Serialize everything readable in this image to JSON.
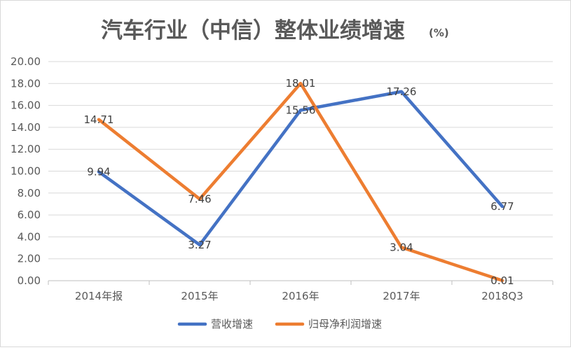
{
  "chart_data": {
    "type": "line",
    "title": "汽车行业（中信）整体业绩增速",
    "title_unit": "(%)",
    "categories": [
      "2014年报",
      "2015年",
      "2016年",
      "2017年",
      "2018Q3"
    ],
    "series": [
      {
        "name": "营收增速",
        "color": "#4472C4",
        "values": [
          9.94,
          3.27,
          15.56,
          17.26,
          6.77
        ],
        "labels": [
          "9.94",
          "3.27",
          "15.56",
          "17.26",
          "6.77"
        ]
      },
      {
        "name": "归母净利润增速",
        "color": "#ED7D31",
        "values": [
          14.71,
          7.46,
          18.01,
          3.04,
          0.01
        ],
        "labels": [
          "14.71",
          "7.46",
          "18.01",
          "3.04",
          "0.01"
        ]
      }
    ],
    "ylim": [
      0,
      20
    ],
    "y_ticks": [
      "0.00",
      "2.00",
      "4.00",
      "6.00",
      "8.00",
      "10.00",
      "12.00",
      "14.00",
      "16.00",
      "18.00",
      "20.00"
    ],
    "grid": true,
    "legend_position": "bottom"
  }
}
